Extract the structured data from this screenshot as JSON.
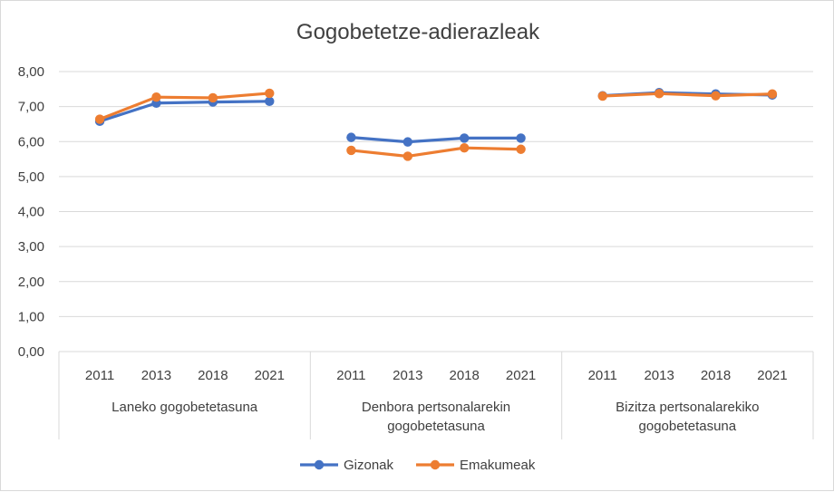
{
  "chart_data": {
    "type": "line",
    "title": "Gogobetetze-adierazleak",
    "y_axis": {
      "min": 0,
      "max": 8,
      "step": 1,
      "tick_labels": [
        "0,00",
        "1,00",
        "2,00",
        "3,00",
        "4,00",
        "5,00",
        "6,00",
        "7,00",
        "8,00"
      ]
    },
    "grid": true,
    "groups": [
      {
        "label_lines": [
          "Laneko gogobetetasuna"
        ],
        "years": [
          "2011",
          "2013",
          "2018",
          "2021"
        ]
      },
      {
        "label_lines": [
          "Denbora pertsonalarekin",
          "gogobetetasuna"
        ],
        "years": [
          "2011",
          "2013",
          "2018",
          "2021"
        ]
      },
      {
        "label_lines": [
          "Bizitza pertsonalarekiko",
          "gogobetetasuna"
        ],
        "years": [
          "2011",
          "2013",
          "2018",
          "2021"
        ]
      }
    ],
    "series": [
      {
        "name": "Gizonak",
        "color": "#4472c4",
        "values": [
          [
            6.58,
            7.1,
            7.13,
            7.15
          ],
          [
            6.12,
            5.99,
            6.1,
            6.1
          ],
          [
            7.31,
            7.4,
            7.36,
            7.33
          ]
        ]
      },
      {
        "name": "Emakumeak",
        "color": "#ed7d31",
        "values": [
          [
            6.64,
            7.27,
            7.25,
            7.38
          ],
          [
            5.75,
            5.58,
            5.82,
            5.78
          ],
          [
            7.3,
            7.37,
            7.31,
            7.36
          ]
        ]
      }
    ],
    "legend_position": "bottom"
  }
}
